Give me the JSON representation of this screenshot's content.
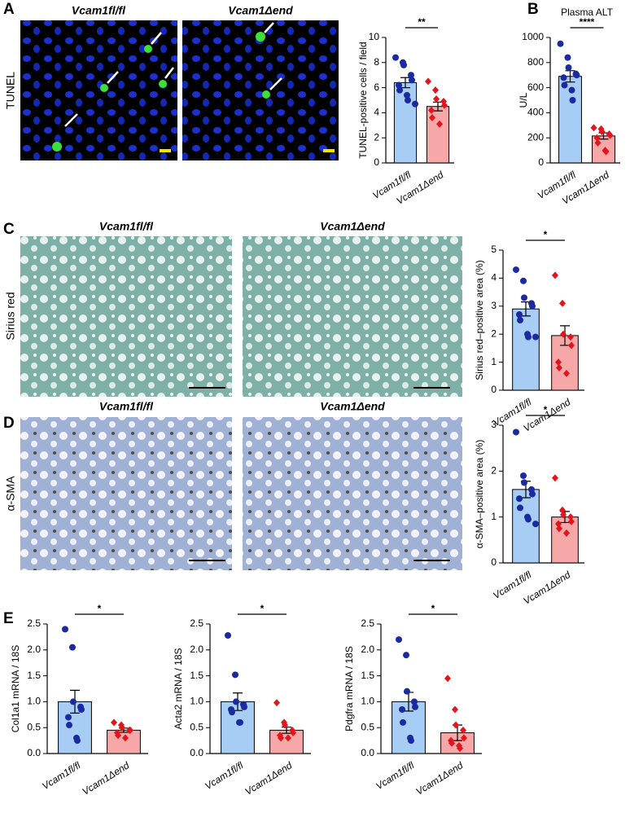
{
  "panel_labels": [
    "A",
    "B",
    "C",
    "D",
    "E"
  ],
  "images": [
    {
      "row_label": "TUNEL",
      "titles": [
        "Vcam1fl/fl",
        "Vcam1Δend"
      ]
    },
    {
      "row_label": "Sirius red",
      "titles": [
        "Vcam1fl/fl",
        "Vcam1Δend"
      ]
    },
    {
      "row_label": "α-SMA",
      "titles": [
        "Vcam1fl/fl",
        "Vcam1Δend"
      ]
    }
  ],
  "chart_data": [
    {
      "type": "bar",
      "y_label": "TUNEL-positive cells / field",
      "categories": [
        "Vcam1fl/fl",
        "Vcam1Δend"
      ],
      "values": [
        6.4,
        4.5
      ],
      "errors": [
        0.4,
        0.35
      ],
      "points": [
        [
          8.4,
          8.0,
          7.8,
          7.0,
          6.6,
          6.2,
          5.8,
          5.4,
          5.0,
          4.7
        ],
        [
          6.5,
          5.8,
          5.1,
          4.9,
          4.6,
          4.2,
          3.6,
          3.1
        ]
      ],
      "colors": [
        "#a7cdf5",
        "#f6a8a8"
      ],
      "point_colors": [
        "#1b2aa0",
        "#e3141c"
      ],
      "markers": [
        "circle",
        "diamond"
      ],
      "ylim": [
        0,
        10
      ],
      "yticks": [
        0,
        2,
        4,
        6,
        8,
        10
      ],
      "significance": "**"
    },
    {
      "type": "bar",
      "title": "Plasma ALT",
      "y_label": "U/L",
      "categories": [
        "Vcam1fl/fl",
        "Vcam1Δend"
      ],
      "values": [
        690,
        215
      ],
      "errors": [
        45,
        25
      ],
      "points": [
        [
          950,
          840,
          760,
          710,
          700,
          680,
          620,
          580,
          500
        ],
        [
          280,
          270,
          250,
          230,
          220,
          200,
          160,
          100,
          90
        ]
      ],
      "colors": [
        "#a7cdf5",
        "#f6a8a8"
      ],
      "point_colors": [
        "#1b2aa0",
        "#e3141c"
      ],
      "markers": [
        "circle",
        "diamond"
      ],
      "ylim": [
        0,
        1000
      ],
      "yticks": [
        0,
        200,
        400,
        600,
        800,
        1000
      ],
      "significance": "****"
    },
    {
      "type": "bar",
      "y_label": "Sirius red–positive area (%)",
      "categories": [
        "Vcam1fl/fl",
        "Vcam1Δend"
      ],
      "values": [
        2.9,
        1.95
      ],
      "errors": [
        0.25,
        0.35
      ],
      "points": [
        [
          4.3,
          3.9,
          3.3,
          3.1,
          3.0,
          2.7,
          2.5,
          2.0,
          1.9,
          1.9
        ],
        [
          4.1,
          3.1,
          2.0,
          1.9,
          1.6,
          1.0,
          0.8,
          0.6
        ]
      ],
      "colors": [
        "#a7cdf5",
        "#f6a8a8"
      ],
      "point_colors": [
        "#1b2aa0",
        "#e3141c"
      ],
      "markers": [
        "circle",
        "diamond"
      ],
      "ylim": [
        0,
        5
      ],
      "yticks": [
        0,
        1,
        2,
        3,
        4,
        5
      ],
      "significance": "*"
    },
    {
      "type": "bar",
      "y_label": "α-SMA–positive area (%)",
      "categories": [
        "Vcam1fl/fl",
        "Vcam1Δend"
      ],
      "values": [
        1.6,
        1.0
      ],
      "errors": [
        0.18,
        0.12
      ],
      "points": [
        [
          2.85,
          1.9,
          1.75,
          1.6,
          1.5,
          1.4,
          1.2,
          1.0,
          0.95,
          0.85
        ],
        [
          1.85,
          1.15,
          1.05,
          1.0,
          0.9,
          0.85,
          0.75,
          0.65
        ]
      ],
      "colors": [
        "#a7cdf5",
        "#f6a8a8"
      ],
      "point_colors": [
        "#1b2aa0",
        "#e3141c"
      ],
      "markers": [
        "circle",
        "diamond"
      ],
      "ylim": [
        0,
        3
      ],
      "yticks": [
        0,
        1,
        2,
        3
      ],
      "significance": "*"
    },
    {
      "type": "bar",
      "y_label": "Col1a1 mRNA / 18S",
      "categories": [
        "Vcam1fl/fl",
        "Vcam1Δend"
      ],
      "values": [
        1.0,
        0.45
      ],
      "errors": [
        0.22,
        0.04
      ],
      "points": [
        [
          2.4,
          2.05,
          1.0,
          0.9,
          0.85,
          0.7,
          0.55,
          0.3,
          0.25
        ],
        [
          0.6,
          0.55,
          0.5,
          0.45,
          0.45,
          0.4,
          0.35,
          0.3
        ]
      ],
      "colors": [
        "#a7cdf5",
        "#f6a8a8"
      ],
      "point_colors": [
        "#1b2aa0",
        "#e3141c"
      ],
      "markers": [
        "circle",
        "diamond"
      ],
      "ylim": [
        0,
        2.5
      ],
      "yticks": [
        {
          "value": 0,
          "label": "0.0"
        },
        {
          "value": 0.5,
          "label": "0.5"
        },
        {
          "value": 1,
          "label": "1.0"
        },
        {
          "value": 1.5,
          "label": "1.5"
        },
        {
          "value": 2,
          "label": "2.0"
        },
        {
          "value": 2.5,
          "label": "2.5"
        }
      ],
      "significance": "*"
    },
    {
      "type": "bar",
      "y_label": "Acta2 mRNA / 18S",
      "categories": [
        "Vcam1fl/fl",
        "Vcam1Δend"
      ],
      "values": [
        1.0,
        0.45
      ],
      "errors": [
        0.17,
        0.06
      ],
      "points": [
        [
          2.28,
          1.52,
          1.0,
          0.95,
          0.9,
          0.85,
          0.8,
          0.6,
          0.6
        ],
        [
          0.98,
          0.6,
          0.55,
          0.45,
          0.4,
          0.35,
          0.3,
          0.3
        ]
      ],
      "colors": [
        "#a7cdf5",
        "#f6a8a8"
      ],
      "point_colors": [
        "#1b2aa0",
        "#e3141c"
      ],
      "markers": [
        "circle",
        "diamond"
      ],
      "ylim": [
        0,
        2.5
      ],
      "yticks": [
        {
          "value": 0,
          "label": "0.0"
        },
        {
          "value": 0.5,
          "label": "0.5"
        },
        {
          "value": 1,
          "label": "1.0"
        },
        {
          "value": 1.5,
          "label": "1.5"
        },
        {
          "value": 2,
          "label": "2.0"
        },
        {
          "value": 2.5,
          "label": "2.5"
        }
      ],
      "significance": "*"
    },
    {
      "type": "bar",
      "y_label": "Pdgfra mRNA / 18S",
      "categories": [
        "Vcam1fl/fl",
        "Vcam1Δend"
      ],
      "values": [
        1.0,
        0.4
      ],
      "errors": [
        0.18,
        0.15
      ],
      "points": [
        [
          2.2,
          1.9,
          1.2,
          1.0,
          0.9,
          0.85,
          0.6,
          0.3,
          0.25
        ],
        [
          1.45,
          0.85,
          0.55,
          0.45,
          0.3,
          0.25,
          0.2,
          0.15,
          0.1
        ]
      ],
      "colors": [
        "#a7cdf5",
        "#f6a8a8"
      ],
      "point_colors": [
        "#1b2aa0",
        "#e3141c"
      ],
      "markers": [
        "circle",
        "diamond"
      ],
      "ylim": [
        0,
        2.5
      ],
      "yticks": [
        {
          "value": 0,
          "label": "0.0"
        },
        {
          "value": 0.5,
          "label": "0.5"
        },
        {
          "value": 1,
          "label": "1.0"
        },
        {
          "value": 1.5,
          "label": "1.5"
        },
        {
          "value": 2,
          "label": "2.0"
        },
        {
          "value": 2.5,
          "label": "2.5"
        }
      ],
      "significance": "*"
    }
  ]
}
